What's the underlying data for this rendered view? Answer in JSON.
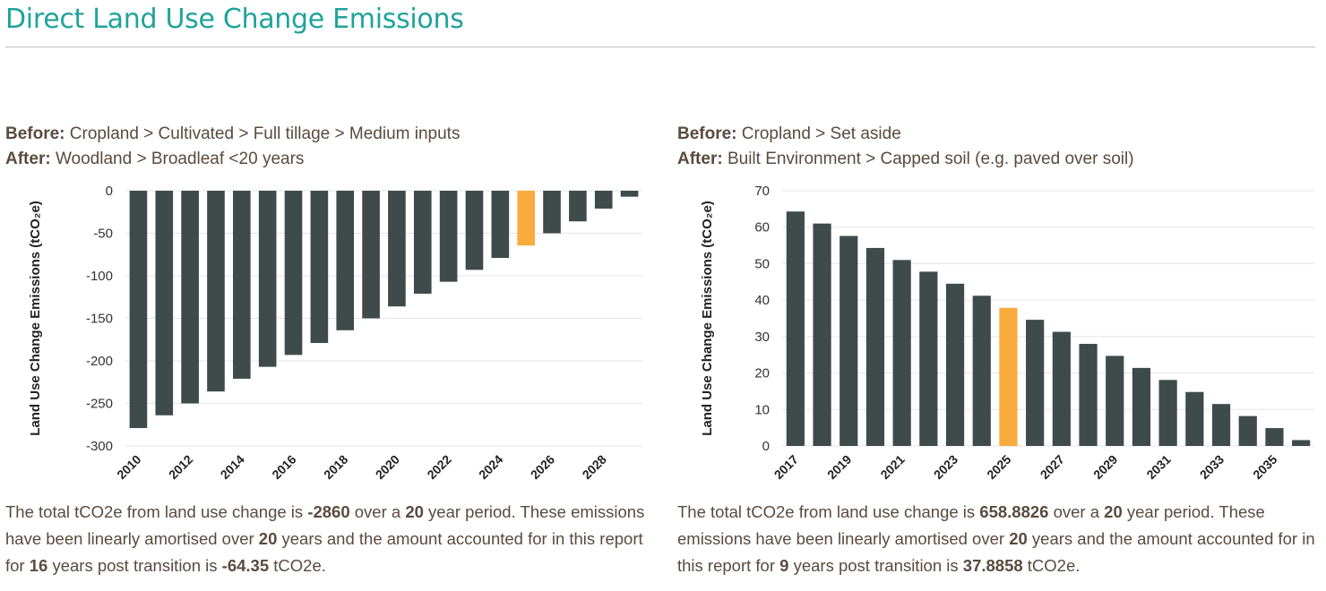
{
  "page": {
    "title": "Direct Land Use Change Emissions"
  },
  "colors": {
    "title": "#1fa39a",
    "bar": "#3f4a4b",
    "highlight": "#f9ab3e",
    "grid": "#e5e5e5",
    "text": "#5a4a3f"
  },
  "panels": [
    {
      "before_label": "Before:",
      "before_value": "Cropland > Cultivated > Full tillage > Medium inputs",
      "after_label": "After:",
      "after_value": "Woodland > Broadleaf <20 years",
      "desc": {
        "t1": "The total tCO2e from land use change is ",
        "total": "-2860",
        "t2": " over a ",
        "period": "20",
        "t3": " year period. These emissions have been linearly amortised over ",
        "amortised": "20",
        "t4": " years and the amount accounted for in this report for ",
        "post_years": "16",
        "t5": " years post transition is ",
        "amount": "-64.35",
        "t6": " tCO2e."
      }
    },
    {
      "before_label": "Before:",
      "before_value": "Cropland > Set aside",
      "after_label": "After:",
      "after_value": "Built Environment > Capped soil (e.g. paved over soil)",
      "desc": {
        "t1": "The total tCO2e from land use change is ",
        "total": "658.8826",
        "t2": " over a ",
        "period": "20",
        "t3": " year period. These emissions have been linearly amortised over ",
        "amortised": "20",
        "t4": " years and the amount accounted for in this report for ",
        "post_years": "9",
        "t5": " years post transition is ",
        "amount": "37.8858",
        "t6": " tCO2e."
      }
    }
  ],
  "chart_data": [
    {
      "type": "bar",
      "ylabel": "Land Use Change Emissions (tCO₂e)",
      "xlabel": "",
      "ylim": [
        -300,
        0
      ],
      "yticks": [
        0,
        -50,
        -100,
        -150,
        -200,
        -250,
        -300
      ],
      "grid": true,
      "categories": [
        "2010",
        "2011",
        "2012",
        "2013",
        "2014",
        "2015",
        "2016",
        "2017",
        "2018",
        "2019",
        "2020",
        "2021",
        "2022",
        "2023",
        "2024",
        "2025",
        "2026",
        "2027",
        "2028",
        "2029"
      ],
      "xtick_labels": [
        "2010",
        "2012",
        "2014",
        "2016",
        "2018",
        "2020",
        "2022",
        "2024",
        "2026",
        "2028"
      ],
      "values": [
        -279,
        -264,
        -250,
        -236,
        -221,
        -207,
        -193,
        -179,
        -164,
        -150,
        -136,
        -121,
        -107,
        -93,
        -79,
        -64.35,
        -50,
        -36,
        -21,
        -7
      ],
      "highlight": "2025"
    },
    {
      "type": "bar",
      "ylabel": "Land Use Change Emissions (tCO₂e)",
      "xlabel": "",
      "ylim": [
        0,
        70
      ],
      "yticks": [
        0,
        10,
        20,
        30,
        40,
        50,
        60,
        70
      ],
      "grid": true,
      "categories": [
        "2017",
        "2018",
        "2019",
        "2020",
        "2021",
        "2022",
        "2023",
        "2024",
        "2025",
        "2026",
        "2027",
        "2028",
        "2029",
        "2030",
        "2031",
        "2032",
        "2033",
        "2034",
        "2035",
        "2036"
      ],
      "xtick_labels": [
        "2017",
        "2019",
        "2021",
        "2023",
        "2025",
        "2027",
        "2029",
        "2031",
        "2033",
        "2035"
      ],
      "values": [
        64.3,
        61.0,
        57.6,
        54.3,
        51.0,
        47.8,
        44.5,
        41.2,
        37.8858,
        34.6,
        31.3,
        28.0,
        24.7,
        21.4,
        18.1,
        14.8,
        11.5,
        8.2,
        4.9,
        1.6
      ],
      "highlight": "2025"
    }
  ]
}
